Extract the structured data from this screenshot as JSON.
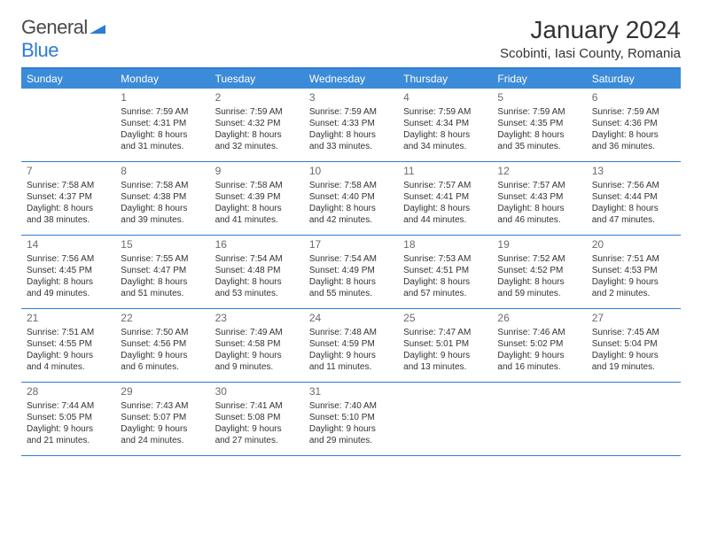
{
  "logo": {
    "word1": "General",
    "word2": "Blue"
  },
  "title": "January 2024",
  "location": "Scobinti, Iasi County, Romania",
  "header_bg": "#3b8bd9",
  "accent": "#2e7cd6",
  "days": [
    "Sunday",
    "Monday",
    "Tuesday",
    "Wednesday",
    "Thursday",
    "Friday",
    "Saturday"
  ],
  "weeks": [
    [
      {
        "n": "",
        "sr": "",
        "ss": "",
        "dl": ""
      },
      {
        "n": "1",
        "sr": "Sunrise: 7:59 AM",
        "ss": "Sunset: 4:31 PM",
        "dl": "Daylight: 8 hours and 31 minutes."
      },
      {
        "n": "2",
        "sr": "Sunrise: 7:59 AM",
        "ss": "Sunset: 4:32 PM",
        "dl": "Daylight: 8 hours and 32 minutes."
      },
      {
        "n": "3",
        "sr": "Sunrise: 7:59 AM",
        "ss": "Sunset: 4:33 PM",
        "dl": "Daylight: 8 hours and 33 minutes."
      },
      {
        "n": "4",
        "sr": "Sunrise: 7:59 AM",
        "ss": "Sunset: 4:34 PM",
        "dl": "Daylight: 8 hours and 34 minutes."
      },
      {
        "n": "5",
        "sr": "Sunrise: 7:59 AM",
        "ss": "Sunset: 4:35 PM",
        "dl": "Daylight: 8 hours and 35 minutes."
      },
      {
        "n": "6",
        "sr": "Sunrise: 7:59 AM",
        "ss": "Sunset: 4:36 PM",
        "dl": "Daylight: 8 hours and 36 minutes."
      }
    ],
    [
      {
        "n": "7",
        "sr": "Sunrise: 7:58 AM",
        "ss": "Sunset: 4:37 PM",
        "dl": "Daylight: 8 hours and 38 minutes."
      },
      {
        "n": "8",
        "sr": "Sunrise: 7:58 AM",
        "ss": "Sunset: 4:38 PM",
        "dl": "Daylight: 8 hours and 39 minutes."
      },
      {
        "n": "9",
        "sr": "Sunrise: 7:58 AM",
        "ss": "Sunset: 4:39 PM",
        "dl": "Daylight: 8 hours and 41 minutes."
      },
      {
        "n": "10",
        "sr": "Sunrise: 7:58 AM",
        "ss": "Sunset: 4:40 PM",
        "dl": "Daylight: 8 hours and 42 minutes."
      },
      {
        "n": "11",
        "sr": "Sunrise: 7:57 AM",
        "ss": "Sunset: 4:41 PM",
        "dl": "Daylight: 8 hours and 44 minutes."
      },
      {
        "n": "12",
        "sr": "Sunrise: 7:57 AM",
        "ss": "Sunset: 4:43 PM",
        "dl": "Daylight: 8 hours and 46 minutes."
      },
      {
        "n": "13",
        "sr": "Sunrise: 7:56 AM",
        "ss": "Sunset: 4:44 PM",
        "dl": "Daylight: 8 hours and 47 minutes."
      }
    ],
    [
      {
        "n": "14",
        "sr": "Sunrise: 7:56 AM",
        "ss": "Sunset: 4:45 PM",
        "dl": "Daylight: 8 hours and 49 minutes."
      },
      {
        "n": "15",
        "sr": "Sunrise: 7:55 AM",
        "ss": "Sunset: 4:47 PM",
        "dl": "Daylight: 8 hours and 51 minutes."
      },
      {
        "n": "16",
        "sr": "Sunrise: 7:54 AM",
        "ss": "Sunset: 4:48 PM",
        "dl": "Daylight: 8 hours and 53 minutes."
      },
      {
        "n": "17",
        "sr": "Sunrise: 7:54 AM",
        "ss": "Sunset: 4:49 PM",
        "dl": "Daylight: 8 hours and 55 minutes."
      },
      {
        "n": "18",
        "sr": "Sunrise: 7:53 AM",
        "ss": "Sunset: 4:51 PM",
        "dl": "Daylight: 8 hours and 57 minutes."
      },
      {
        "n": "19",
        "sr": "Sunrise: 7:52 AM",
        "ss": "Sunset: 4:52 PM",
        "dl": "Daylight: 8 hours and 59 minutes."
      },
      {
        "n": "20",
        "sr": "Sunrise: 7:51 AM",
        "ss": "Sunset: 4:53 PM",
        "dl": "Daylight: 9 hours and 2 minutes."
      }
    ],
    [
      {
        "n": "21",
        "sr": "Sunrise: 7:51 AM",
        "ss": "Sunset: 4:55 PM",
        "dl": "Daylight: 9 hours and 4 minutes."
      },
      {
        "n": "22",
        "sr": "Sunrise: 7:50 AM",
        "ss": "Sunset: 4:56 PM",
        "dl": "Daylight: 9 hours and 6 minutes."
      },
      {
        "n": "23",
        "sr": "Sunrise: 7:49 AM",
        "ss": "Sunset: 4:58 PM",
        "dl": "Daylight: 9 hours and 9 minutes."
      },
      {
        "n": "24",
        "sr": "Sunrise: 7:48 AM",
        "ss": "Sunset: 4:59 PM",
        "dl": "Daylight: 9 hours and 11 minutes."
      },
      {
        "n": "25",
        "sr": "Sunrise: 7:47 AM",
        "ss": "Sunset: 5:01 PM",
        "dl": "Daylight: 9 hours and 13 minutes."
      },
      {
        "n": "26",
        "sr": "Sunrise: 7:46 AM",
        "ss": "Sunset: 5:02 PM",
        "dl": "Daylight: 9 hours and 16 minutes."
      },
      {
        "n": "27",
        "sr": "Sunrise: 7:45 AM",
        "ss": "Sunset: 5:04 PM",
        "dl": "Daylight: 9 hours and 19 minutes."
      }
    ],
    [
      {
        "n": "28",
        "sr": "Sunrise: 7:44 AM",
        "ss": "Sunset: 5:05 PM",
        "dl": "Daylight: 9 hours and 21 minutes."
      },
      {
        "n": "29",
        "sr": "Sunrise: 7:43 AM",
        "ss": "Sunset: 5:07 PM",
        "dl": "Daylight: 9 hours and 24 minutes."
      },
      {
        "n": "30",
        "sr": "Sunrise: 7:41 AM",
        "ss": "Sunset: 5:08 PM",
        "dl": "Daylight: 9 hours and 27 minutes."
      },
      {
        "n": "31",
        "sr": "Sunrise: 7:40 AM",
        "ss": "Sunset: 5:10 PM",
        "dl": "Daylight: 9 hours and 29 minutes."
      },
      {
        "n": "",
        "sr": "",
        "ss": "",
        "dl": ""
      },
      {
        "n": "",
        "sr": "",
        "ss": "",
        "dl": ""
      },
      {
        "n": "",
        "sr": "",
        "ss": "",
        "dl": ""
      }
    ]
  ]
}
